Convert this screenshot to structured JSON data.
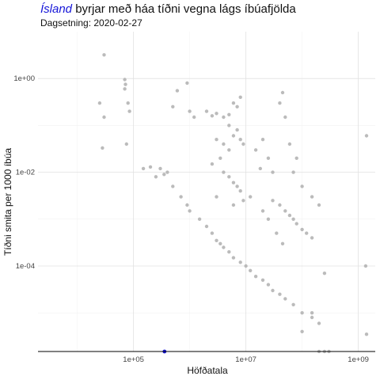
{
  "chart_data": {
    "type": "scatter",
    "title_highlight": "Ísland",
    "title_rest": " byrjar með háa tíðni vegna lágs íbúafjölda",
    "subtitle": "Dagsetning: 2020-02-27",
    "xlabel": "Höfðatala",
    "ylabel": "Tíðni smita per 1000 íbúa",
    "x_scale": "log10",
    "y_scale": "log10",
    "xlim": [
      2000,
      2000000000
    ],
    "ylim": [
      1.5e-06,
      10
    ],
    "x_ticks": [
      {
        "value": 100000,
        "label": "1e+05"
      },
      {
        "value": 10000000,
        "label": "1e+07"
      },
      {
        "value": 1000000000,
        "label": "1e+09"
      }
    ],
    "y_ticks": [
      {
        "value": 1,
        "label": "1e+00"
      },
      {
        "value": 0.01,
        "label": "1e-02"
      },
      {
        "value": 0.0001,
        "label": "1e-04"
      }
    ],
    "grid": true,
    "colors": {
      "highlight": "#1515d8",
      "points": "#b4b4b4",
      "grid_major": "#e1e1e1",
      "grid_minor": "#f2f2f2",
      "axis": "#000000"
    },
    "series": [
      {
        "name": "Ísland",
        "points": [
          [
            356000,
            1.5e-06
          ]
        ]
      },
      {
        "name": "",
        "points": [
          [
            30000,
            3.2
          ],
          [
            70000,
            0.95
          ],
          [
            72000,
            0.75
          ],
          [
            70000,
            0.6
          ],
          [
            80000,
            0.3
          ],
          [
            25000,
            0.3
          ],
          [
            85000,
            0.2
          ],
          [
            30000,
            0.15
          ],
          [
            28000,
            0.033
          ],
          [
            75000,
            0.04
          ],
          [
            900000,
            0.8
          ],
          [
            600000,
            0.55
          ],
          [
            1000000,
            0.2
          ],
          [
            500000,
            0.25
          ],
          [
            1200000,
            0.15
          ],
          [
            300000,
            0.012
          ],
          [
            350000,
            0.009
          ],
          [
            400000,
            0.01
          ],
          [
            200000,
            0.013
          ],
          [
            150000,
            0.012
          ],
          [
            250000,
            0.008
          ],
          [
            500000,
            0.005
          ],
          [
            700000,
            0.003
          ],
          [
            900000,
            0.002
          ],
          [
            1000000,
            0.0015
          ],
          [
            2000000,
            0.2
          ],
          [
            3000000,
            0.18
          ],
          [
            2500000,
            0.16
          ],
          [
            4000000,
            0.15
          ],
          [
            5000000,
            0.17
          ],
          [
            6000000,
            0.3
          ],
          [
            8000000,
            0.4
          ],
          [
            7000000,
            0.25
          ],
          [
            5000000,
            0.1
          ],
          [
            3000000,
            0.05
          ],
          [
            4000000,
            0.04
          ],
          [
            5000000,
            0.03
          ],
          [
            3500000,
            0.02
          ],
          [
            2500000,
            0.015
          ],
          [
            6000000,
            0.06
          ],
          [
            7000000,
            0.08
          ],
          [
            8000000,
            0.05
          ],
          [
            9000000,
            0.04
          ],
          [
            4000000,
            0.01
          ],
          [
            5000000,
            0.008
          ],
          [
            6000000,
            0.006
          ],
          [
            7000000,
            0.005
          ],
          [
            8000000,
            0.004
          ],
          [
            3000000,
            0.003
          ],
          [
            6000000,
            0.002
          ],
          [
            9000000,
            0.0025
          ],
          [
            12000000,
            0.003
          ],
          [
            15000000,
            0.03
          ],
          [
            20000000,
            0.05
          ],
          [
            25000000,
            0.02
          ],
          [
            30000000,
            0.01
          ],
          [
            18000000,
            0.012
          ],
          [
            40000000,
            0.3
          ],
          [
            45000000,
            0.5
          ],
          [
            50000000,
            0.15
          ],
          [
            60000000,
            0.04
          ],
          [
            80000000,
            0.02
          ],
          [
            70000000,
            0.01
          ],
          [
            100000000,
            0.005
          ],
          [
            150000000,
            0.003
          ],
          [
            200000000,
            0.002
          ],
          [
            30000000,
            0.0025
          ],
          [
            40000000,
            0.002
          ],
          [
            50000000,
            0.0015
          ],
          [
            60000000,
            0.0012
          ],
          [
            70000000,
            0.001
          ],
          [
            80000000,
            0.0008
          ],
          [
            100000000,
            0.0006
          ],
          [
            120000000,
            0.0005
          ],
          [
            150000000,
            0.0004
          ],
          [
            20000000,
            0.0015
          ],
          [
            25000000,
            0.001
          ],
          [
            35000000,
            0.0005
          ],
          [
            45000000,
            0.0003
          ],
          [
            1500000,
            0.001
          ],
          [
            2000000,
            0.0007
          ],
          [
            2500000,
            0.0005
          ],
          [
            3000000,
            0.00035
          ],
          [
            3500000,
            0.0003
          ],
          [
            4000000,
            0.00025
          ],
          [
            5000000,
            0.0002
          ],
          [
            6000000,
            0.00015
          ],
          [
            8000000,
            0.00012
          ],
          [
            10000000,
            0.0001
          ],
          [
            12000000,
            8e-05
          ],
          [
            15000000,
            6e-05
          ],
          [
            20000000,
            5e-05
          ],
          [
            25000000,
            4e-05
          ],
          [
            30000000,
            3e-05
          ],
          [
            40000000,
            2.5e-05
          ],
          [
            50000000,
            2e-05
          ],
          [
            70000000,
            1.5e-05
          ],
          [
            100000000,
            1e-05
          ],
          [
            150000000,
            8e-06
          ],
          [
            200000000,
            6e-06
          ],
          [
            100000000,
            4e-06
          ],
          [
            150000000,
            1e-05
          ],
          [
            250000000,
            7e-05
          ],
          [
            1400000000,
            0.06
          ],
          [
            1350000000,
            0.0001
          ],
          [
            1400000000,
            3.5e-06
          ],
          [
            200000000,
            1.5e-06
          ],
          [
            250000000,
            1.5e-06
          ],
          [
            300000000,
            1.5e-06
          ]
        ]
      }
    ]
  }
}
